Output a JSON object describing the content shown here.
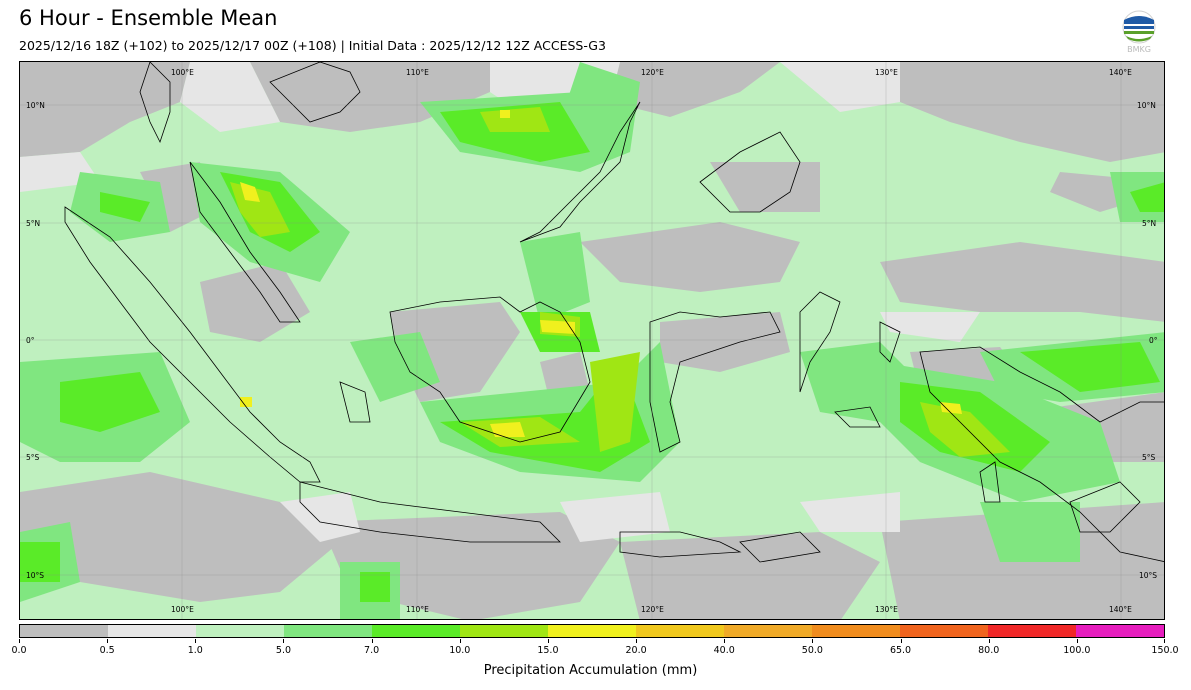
{
  "header": {
    "title": "6 Hour - Ensemble Mean",
    "subtitle": "2025/12/16 18Z (+102) to 2025/12/17 00Z (+108) | Initial Data : 2025/12/12 12Z ACCESS-G3",
    "logo_text": "BMKG"
  },
  "map": {
    "lon_labels_top": [
      "100°E",
      "110°E",
      "120°E",
      "130°E",
      "140°E"
    ],
    "lon_labels_bottom": [
      "100°E",
      "110°E",
      "120°E",
      "130°E",
      "140°E"
    ],
    "lat_labels_left": [
      "10°N",
      "5°N",
      "0°",
      "5°S",
      "10°S"
    ],
    "lat_labels_right": [
      "10°N",
      "5°N",
      "0°",
      "5°S",
      "10°S"
    ]
  },
  "colorbar": {
    "label": "Precipitation Accumulation (mm)",
    "ticks": [
      "0.0",
      "0.5",
      "1.0",
      "5.0",
      "7.0",
      "10.0",
      "15.0",
      "20.0",
      "40.0",
      "50.0",
      "65.0",
      "80.0",
      "100.0",
      "150.0"
    ],
    "colors": [
      "#bebebe",
      "#e6e6e6",
      "#bff0bf",
      "#80e680",
      "#5aeb28",
      "#a0e614",
      "#f0f01e",
      "#f0c81e",
      "#f0aa28",
      "#f08c1e",
      "#f0641e",
      "#f02828",
      "#e61ebe"
    ]
  }
}
